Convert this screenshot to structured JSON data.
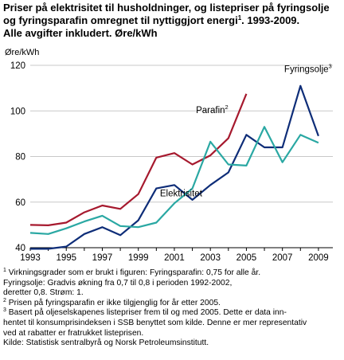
{
  "title": {
    "line1": "Priser på elektrisitet til husholdninger, og listepriser på fyringsolje",
    "line2": "og fyringsparafin omregnet til nyttiggjort energi",
    "line2_sup": "1",
    "line2_end": ". 1993-2009.",
    "line3": "Alle avgifter inkludert. Øre/kWh"
  },
  "chart_data": {
    "type": "line",
    "ylabel": "Øre/kWh",
    "ylim": [
      40,
      120
    ],
    "yticks": [
      "40",
      "60",
      "80",
      "100",
      "120"
    ],
    "xlim": [
      1993,
      2009.8
    ],
    "xticks": [
      "1993",
      "1995",
      "1997",
      "1999",
      "2001",
      "2003",
      "2005",
      "2007",
      "2009"
    ],
    "grid": true,
    "series": [
      {
        "name": "Parafin",
        "sup": "2",
        "color": "#a6192e",
        "x": [
          1993,
          1994,
          1995,
          1996,
          1997,
          1998,
          1999,
          2000,
          2001,
          2002,
          2003,
          2004,
          2005
        ],
        "values": [
          50,
          49.8,
          51,
          55.5,
          58.5,
          57,
          63.5,
          79.5,
          81.5,
          76.5,
          80.5,
          88,
          107.5
        ]
      },
      {
        "name": "Fyringsolje",
        "sup": "3",
        "color": "#0e2d78",
        "x": [
          1993,
          1994,
          1995,
          1996,
          1997,
          1998,
          1999,
          2000,
          2001,
          2002,
          2003,
          2004,
          2005,
          2006,
          2007,
          2008,
          2009
        ],
        "values": [
          39.5,
          39.5,
          40.5,
          46,
          49,
          45.5,
          52,
          66,
          67.5,
          61,
          67.5,
          73,
          89.5,
          84,
          84,
          111,
          89
        ]
      },
      {
        "name": "Elektrisitet",
        "sup": "",
        "color": "#2aa8a3",
        "x": [
          1993,
          1994,
          1995,
          1996,
          1997,
          1998,
          1999,
          2000,
          2001,
          2002,
          2003,
          2004,
          2005,
          2006,
          2007,
          2008,
          2009
        ],
        "values": [
          46.5,
          46,
          48.5,
          51.5,
          54,
          49.5,
          49,
          51,
          59.5,
          66,
          86.5,
          76.5,
          76,
          93,
          77.5,
          89.5,
          86
        ]
      }
    ]
  },
  "notes": [
    {
      "sup": "1",
      "text": "Virkningsgrader som er brukt i figuren: Fyringsparafin: 0,75 for alle år."
    },
    {
      "sup": "",
      "text": "Fyringsolje: Gradvis økning fra 0,7 til 0,8 i perioden 1992-2002,"
    },
    {
      "sup": "",
      "text": "deretter 0,8. Strøm: 1."
    },
    {
      "sup": "2",
      "text": "Prisen på fyringsparafin er ikke tilgjenglig for år etter 2005."
    },
    {
      "sup": "3",
      "text": "Basert på oljeselskapenes listepriser frem til og med 2005. Dette er data inn-"
    },
    {
      "sup": "",
      "text": "hentet til konsumprisindeksen i SSB benyttet som kilde. Denne er mer representativ"
    },
    {
      "sup": "",
      "text": "ved at rabatter er fratrukket listeprisen."
    },
    {
      "sup": "",
      "text": "Kilde: Statistisk sentralbyrå og Norsk Petroleumsinstitutt."
    }
  ]
}
